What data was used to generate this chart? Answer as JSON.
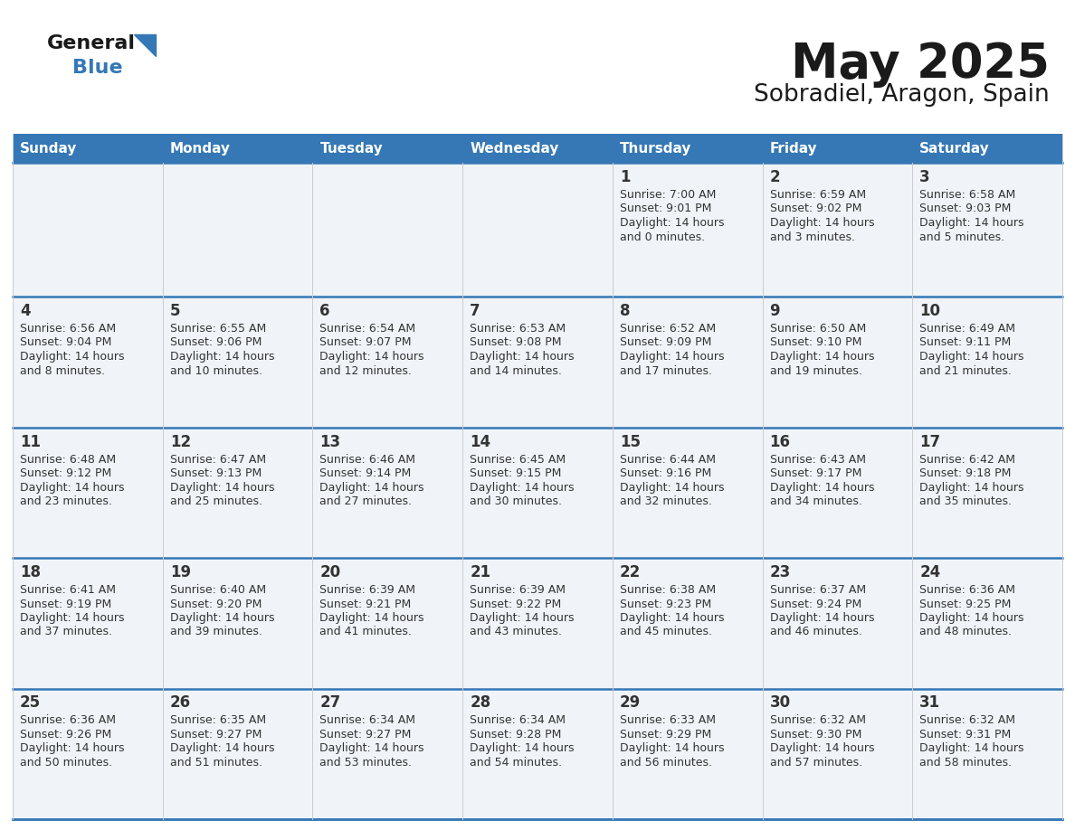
{
  "title": "May 2025",
  "subtitle": "Sobradiel, Aragon, Spain",
  "header_color": "#3578b5",
  "header_text_color": "#ffffff",
  "cell_bg_color": "#f0f4f8",
  "text_color": "#333333",
  "line_color": "#3578b5",
  "days_of_week": [
    "Sunday",
    "Monday",
    "Tuesday",
    "Wednesday",
    "Thursday",
    "Friday",
    "Saturday"
  ],
  "weeks": [
    [
      {
        "day": "",
        "sunrise": "",
        "sunset": "",
        "daylight": ""
      },
      {
        "day": "",
        "sunrise": "",
        "sunset": "",
        "daylight": ""
      },
      {
        "day": "",
        "sunrise": "",
        "sunset": "",
        "daylight": ""
      },
      {
        "day": "",
        "sunrise": "",
        "sunset": "",
        "daylight": ""
      },
      {
        "day": "1",
        "sunrise": "7:00 AM",
        "sunset": "9:01 PM",
        "daylight": "14 hours and 0 minutes."
      },
      {
        "day": "2",
        "sunrise": "6:59 AM",
        "sunset": "9:02 PM",
        "daylight": "14 hours and 3 minutes."
      },
      {
        "day": "3",
        "sunrise": "6:58 AM",
        "sunset": "9:03 PM",
        "daylight": "14 hours and 5 minutes."
      }
    ],
    [
      {
        "day": "4",
        "sunrise": "6:56 AM",
        "sunset": "9:04 PM",
        "daylight": "14 hours and 8 minutes."
      },
      {
        "day": "5",
        "sunrise": "6:55 AM",
        "sunset": "9:06 PM",
        "daylight": "14 hours and 10 minutes."
      },
      {
        "day": "6",
        "sunrise": "6:54 AM",
        "sunset": "9:07 PM",
        "daylight": "14 hours and 12 minutes."
      },
      {
        "day": "7",
        "sunrise": "6:53 AM",
        "sunset": "9:08 PM",
        "daylight": "14 hours and 14 minutes."
      },
      {
        "day": "8",
        "sunrise": "6:52 AM",
        "sunset": "9:09 PM",
        "daylight": "14 hours and 17 minutes."
      },
      {
        "day": "9",
        "sunrise": "6:50 AM",
        "sunset": "9:10 PM",
        "daylight": "14 hours and 19 minutes."
      },
      {
        "day": "10",
        "sunrise": "6:49 AM",
        "sunset": "9:11 PM",
        "daylight": "14 hours and 21 minutes."
      }
    ],
    [
      {
        "day": "11",
        "sunrise": "6:48 AM",
        "sunset": "9:12 PM",
        "daylight": "14 hours and 23 minutes."
      },
      {
        "day": "12",
        "sunrise": "6:47 AM",
        "sunset": "9:13 PM",
        "daylight": "14 hours and 25 minutes."
      },
      {
        "day": "13",
        "sunrise": "6:46 AM",
        "sunset": "9:14 PM",
        "daylight": "14 hours and 27 minutes."
      },
      {
        "day": "14",
        "sunrise": "6:45 AM",
        "sunset": "9:15 PM",
        "daylight": "14 hours and 30 minutes."
      },
      {
        "day": "15",
        "sunrise": "6:44 AM",
        "sunset": "9:16 PM",
        "daylight": "14 hours and 32 minutes."
      },
      {
        "day": "16",
        "sunrise": "6:43 AM",
        "sunset": "9:17 PM",
        "daylight": "14 hours and 34 minutes."
      },
      {
        "day": "17",
        "sunrise": "6:42 AM",
        "sunset": "9:18 PM",
        "daylight": "14 hours and 35 minutes."
      }
    ],
    [
      {
        "day": "18",
        "sunrise": "6:41 AM",
        "sunset": "9:19 PM",
        "daylight": "14 hours and 37 minutes."
      },
      {
        "day": "19",
        "sunrise": "6:40 AM",
        "sunset": "9:20 PM",
        "daylight": "14 hours and 39 minutes."
      },
      {
        "day": "20",
        "sunrise": "6:39 AM",
        "sunset": "9:21 PM",
        "daylight": "14 hours and 41 minutes."
      },
      {
        "day": "21",
        "sunrise": "6:39 AM",
        "sunset": "9:22 PM",
        "daylight": "14 hours and 43 minutes."
      },
      {
        "day": "22",
        "sunrise": "6:38 AM",
        "sunset": "9:23 PM",
        "daylight": "14 hours and 45 minutes."
      },
      {
        "day": "23",
        "sunrise": "6:37 AM",
        "sunset": "9:24 PM",
        "daylight": "14 hours and 46 minutes."
      },
      {
        "day": "24",
        "sunrise": "6:36 AM",
        "sunset": "9:25 PM",
        "daylight": "14 hours and 48 minutes."
      }
    ],
    [
      {
        "day": "25",
        "sunrise": "6:36 AM",
        "sunset": "9:26 PM",
        "daylight": "14 hours and 50 minutes."
      },
      {
        "day": "26",
        "sunrise": "6:35 AM",
        "sunset": "9:27 PM",
        "daylight": "14 hours and 51 minutes."
      },
      {
        "day": "27",
        "sunrise": "6:34 AM",
        "sunset": "9:27 PM",
        "daylight": "14 hours and 53 minutes."
      },
      {
        "day": "28",
        "sunrise": "6:34 AM",
        "sunset": "9:28 PM",
        "daylight": "14 hours and 54 minutes."
      },
      {
        "day": "29",
        "sunrise": "6:33 AM",
        "sunset": "9:29 PM",
        "daylight": "14 hours and 56 minutes."
      },
      {
        "day": "30",
        "sunrise": "6:32 AM",
        "sunset": "9:30 PM",
        "daylight": "14 hours and 57 minutes."
      },
      {
        "day": "31",
        "sunrise": "6:32 AM",
        "sunset": "9:31 PM",
        "daylight": "14 hours and 58 minutes."
      }
    ]
  ],
  "logo_text_general": "General",
  "logo_text_blue": "Blue",
  "logo_color_general": "#1a1a1a",
  "logo_color_blue": "#3578b5",
  "logo_triangle_color": "#3578b5"
}
